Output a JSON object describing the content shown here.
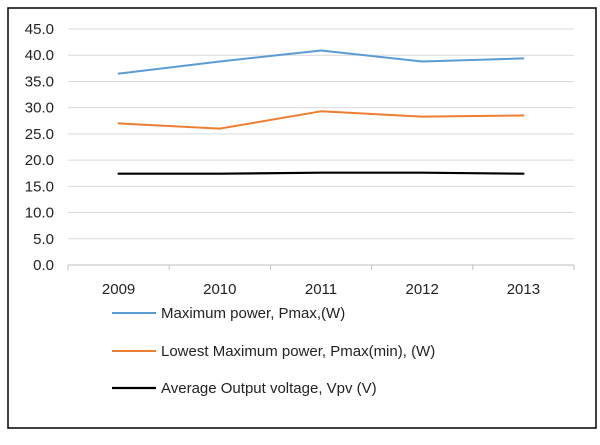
{
  "chart_data": {
    "type": "line",
    "categories": [
      "2009",
      "2010",
      "2011",
      "2012",
      "2013"
    ],
    "ylim": [
      0,
      45
    ],
    "yticks": [
      "0.0",
      "5.0",
      "10.0",
      "15.0",
      "20.0",
      "25.0",
      "30.0",
      "35.0",
      "40.0",
      "45.0"
    ],
    "grid": true,
    "legend_position": "bottom",
    "series": [
      {
        "name": "Maximum power, Pmax,(W)",
        "color": "#5b9bd5",
        "values": [
          36.5,
          38.8,
          40.9,
          38.8,
          39.4
        ]
      },
      {
        "name": "Lowest Maximum power, Pmax(min), (W)",
        "color": "#ed7d31",
        "values": [
          27.0,
          26.0,
          29.3,
          28.3,
          28.5
        ]
      },
      {
        "name": "Average Output voltage, Vpv (V)",
        "color": "#000000",
        "values": [
          17.4,
          17.4,
          17.6,
          17.6,
          17.4
        ]
      }
    ]
  }
}
